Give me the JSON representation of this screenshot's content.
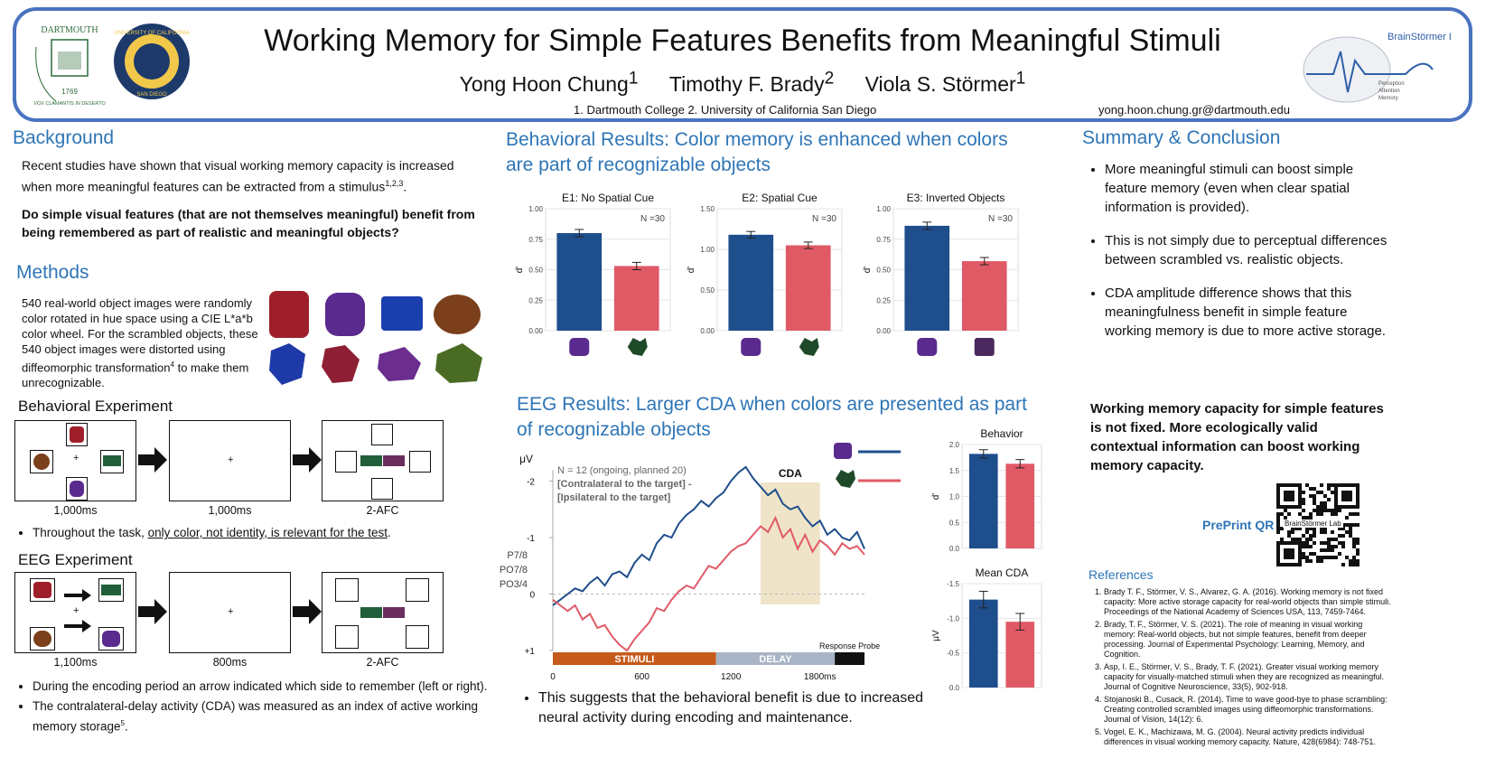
{
  "header": {
    "title": "Working Memory for Simple Features Benefits from Meaningful Stimuli",
    "authors": [
      "Yong Hoon Chung",
      "Timothy F. Brady",
      "Viola S. Störmer"
    ],
    "author_sups": [
      "1",
      "2",
      "1"
    ],
    "affiliations": "1. Dartmouth College  2. University of California San Diego",
    "email": "yong.hoon.chung.gr@dartmouth.edu",
    "logo1": {
      "name": "DARTMOUTH",
      "motto": "VOX CLAMANTIS IN DESERTO",
      "year": "1769"
    },
    "logo2": {
      "name": "UNIVERSITY OF CALIFORNIA",
      "place": "SAN DIEGO"
    },
    "lab": {
      "name": "BrainStörmer Lab",
      "tags": [
        "Perception",
        "Attention",
        "Memory"
      ]
    }
  },
  "background": {
    "heading": "Background",
    "text": "Recent studies have shown that visual working memory capacity is increased when more meaningful features can be extracted from a stimulus",
    "text_sup": "1,2,3",
    "question": "Do simple visual features (that are not themselves meaningful) benefit from being remembered as part of realistic and meaningful objects?"
  },
  "methods": {
    "heading": "Methods",
    "text_a": "540 real-world object images were randomly color rotated in hue space using a CIE L*a*b color wheel. For the scrambled objects, these 540 object images were distorted using diffeomorphic transformation",
    "text_sup": "4",
    "text_b": " to make them unrecognizable.",
    "behav_heading": "Behavioral Experiment",
    "behav_labels": [
      "1,000ms",
      "1,000ms",
      "2-AFC"
    ],
    "behav_note_a": "Throughout the task, ",
    "behav_note_u": "only color, not identity, is relevant for the test",
    "behav_note_b": ".",
    "eeg_heading": "EEG Experiment",
    "eeg_labels": [
      "1,100ms",
      "800ms",
      "2-AFC"
    ],
    "eeg_notes": [
      "During the encoding period an arrow indicated which side to remember (left or right).",
      "The contralateral-delay activity (CDA) was measured as an index of active working memory storage"
    ],
    "eeg_note_sup": "5",
    "fixation": "+"
  },
  "behavioral_results": {
    "heading": "Behavioral Results: Color memory is enhanced when colors are part of recognizable objects"
  },
  "eeg_results": {
    "heading": "EEG Results: Larger CDA when colors are presented as part of recognizable objects",
    "note": "This suggests that the behavioral benefit is due to increased neural activity during encoding and maintenance."
  },
  "summary": {
    "heading": "Summary & Conclusion",
    "bullets": [
      "More meaningful stimuli can boost simple feature memory (even when clear spatial information is provided).",
      "This is not simply due to perceptual differences between scrambled vs. realistic objects.",
      "CDA amplitude difference shows that this meaningfulness benefit in simple feature working memory is due to more active storage."
    ],
    "conclusion": "Working memory capacity for simple features is not fixed. More ecologically valid contextual information can boost working memory capacity.",
    "qr_label": "PrePrint QR",
    "qr_text": "BrainStörmer Lab"
  },
  "references": {
    "heading": "References",
    "items": [
      "Brady T. F., Störmer, V. S., Alvarez, G. A. (2016). Working memory is not fixed capacity: More active storage capacity for real-world objects than simple stimuli. Proceedings of the National Academy of Sciences USA, 113, 7459-7464.",
      "Brady, T. F., Störmer, V. S. (2021). The role of meaning in visual working memory: Real-world objects, but not simple features, benefit from deeper processing. Journal of Experimental Psychology: Learning, Memory, and Cognition.",
      "Asp, I. E., Störmer, V. S., Brady, T. F. (2021). Greater visual working memory capacity for visually-matched stimuli when they are recognized as meaningful. Journal of Cognitive Neuroscience, 33(5), 902-918.",
      "Stojanoski B., Cusack, R. (2014). Time to wave good-bye to phase scrambling: Creating controlled scrambled images using diffeomorphic transformations. Journal of Vision, 14(12): 6.",
      "Vogel, E. K., Machizawa, M. G. (2004). Neural activity predicts individual differences in visual working memory capacity. Nature, 428(6984): 748-751."
    ]
  },
  "colors": {
    "real": "#1f4e8c",
    "scrambled": "#e05a66",
    "heading": "#2e75b6",
    "border": "#4a73c0"
  },
  "chart_data": [
    {
      "type": "bar",
      "title": "E1: No Spatial Cue",
      "ylabel": "d'",
      "ylim": [
        0,
        1.0
      ],
      "ticks": [
        "0.00",
        "0.25",
        "0.50",
        "0.75",
        "1.00"
      ],
      "categories": [
        "real",
        "scrambled"
      ],
      "values": [
        0.8,
        0.53
      ],
      "errors": [
        0.03,
        0.03
      ],
      "annotation": "N =30"
    },
    {
      "type": "bar",
      "title": "E2: Spatial Cue",
      "ylabel": "d'",
      "ylim": [
        0,
        1.5
      ],
      "ticks": [
        "0.00",
        "0.50",
        "1.00",
        "1.50"
      ],
      "categories": [
        "real",
        "scrambled"
      ],
      "values": [
        1.18,
        1.05
      ],
      "errors": [
        0.04,
        0.04
      ],
      "annotation": "N =30"
    },
    {
      "type": "bar",
      "title": "E3: Inverted Objects",
      "ylabel": "d'",
      "ylim": [
        0,
        1.0
      ],
      "ticks": [
        "0.00",
        "0.25",
        "0.50",
        "0.75",
        "1.00"
      ],
      "categories": [
        "real",
        "inverted"
      ],
      "values": [
        0.86,
        0.57
      ],
      "errors": [
        0.03,
        0.03
      ],
      "annotation": "N =30"
    },
    {
      "type": "line",
      "title": "CDA waveform",
      "ylabel": "μV",
      "electrodes": "P7/8 PO7/8 PO3/4",
      "legend_text": [
        "N = 12 (ongoing, planned 20)",
        "[Contralateral to the target] -",
        "[Ipsilateral to the target]"
      ],
      "xticks": [
        "0",
        "600",
        "1200",
        "1800ms"
      ],
      "yticks": [
        "-2",
        "-1",
        "0",
        "+1"
      ],
      "ylim": [
        1,
        -2.5
      ],
      "xlim": [
        0,
        2100
      ],
      "window_label": "CDA",
      "window": [
        1400,
        1800
      ],
      "phases": [
        "STIMULI",
        "DELAY",
        "Response Probe"
      ],
      "series": [
        {
          "name": "real",
          "x": [
            0,
            50,
            100,
            150,
            200,
            250,
            300,
            350,
            400,
            450,
            500,
            550,
            600,
            650,
            700,
            750,
            800,
            850,
            900,
            950,
            1000,
            1050,
            1100,
            1150,
            1200,
            1250,
            1300,
            1350,
            1400,
            1450,
            1500,
            1550,
            1600,
            1650,
            1700,
            1750,
            1800,
            1850,
            1900,
            1950,
            2000,
            2050,
            2100
          ],
          "values": [
            0.2,
            0.1,
            0.0,
            -0.1,
            -0.05,
            -0.2,
            -0.3,
            -0.15,
            -0.35,
            -0.4,
            -0.3,
            -0.55,
            -0.7,
            -0.6,
            -0.9,
            -1.05,
            -1.0,
            -1.25,
            -1.4,
            -1.5,
            -1.65,
            -1.55,
            -1.7,
            -1.8,
            -2.0,
            -2.15,
            -2.25,
            -2.05,
            -1.9,
            -1.75,
            -1.85,
            -1.6,
            -1.5,
            -1.55,
            -1.35,
            -1.2,
            -1.3,
            -1.05,
            -1.15,
            -1.0,
            -0.95,
            -1.1,
            -0.8
          ]
        },
        {
          "name": "scrambled",
          "x": [
            0,
            50,
            100,
            150,
            200,
            250,
            300,
            350,
            400,
            450,
            500,
            550,
            600,
            650,
            700,
            750,
            800,
            850,
            900,
            950,
            1000,
            1050,
            1100,
            1150,
            1200,
            1250,
            1300,
            1350,
            1400,
            1450,
            1500,
            1550,
            1600,
            1650,
            1700,
            1750,
            1800,
            1850,
            1900,
            1950,
            2000,
            2050,
            2100
          ],
          "values": [
            0.1,
            0.2,
            0.3,
            0.2,
            0.45,
            0.35,
            0.6,
            0.55,
            0.75,
            0.9,
            1.0,
            0.8,
            0.65,
            0.5,
            0.25,
            0.3,
            0.1,
            -0.05,
            -0.15,
            -0.1,
            -0.3,
            -0.5,
            -0.45,
            -0.6,
            -0.75,
            -0.85,
            -0.9,
            -1.05,
            -1.2,
            -1.1,
            -1.35,
            -1.0,
            -1.15,
            -0.8,
            -1.05,
            -0.75,
            -0.95,
            -0.85,
            -0.7,
            -0.9,
            -0.8,
            -0.85,
            -0.7
          ]
        }
      ]
    },
    {
      "type": "bar",
      "title": "Behavior",
      "ylabel": "d'",
      "ylim": [
        0,
        2.0
      ],
      "ticks": [
        "0.0",
        "0.5",
        "1.0",
        "1.5",
        "2.0"
      ],
      "categories": [
        "real",
        "scrambled"
      ],
      "values": [
        1.82,
        1.63
      ],
      "errors": [
        0.08,
        0.08
      ]
    },
    {
      "type": "bar",
      "title": "Mean CDA",
      "ylabel": "μV",
      "ylim": [
        0,
        -1.5
      ],
      "ticks": [
        "0.0",
        "-0.5",
        "-1.0",
        "-1.5"
      ],
      "categories": [
        "real",
        "scrambled"
      ],
      "values": [
        -1.27,
        -0.95
      ],
      "errors": [
        0.12,
        0.12
      ]
    }
  ]
}
